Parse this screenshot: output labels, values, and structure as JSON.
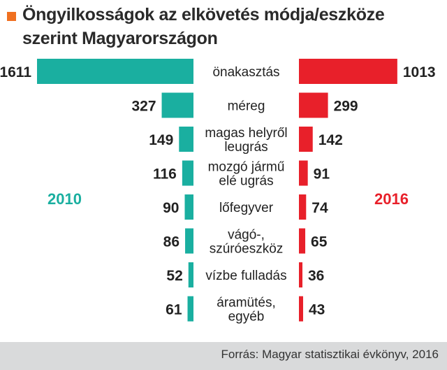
{
  "title": "Öngyilkosságok az elkövetés módja/eszköze szerint Magyarországon",
  "source": "Forrás: Magyar statisztikai évkönyv, 2016",
  "colors": {
    "left": "#1aafa0",
    "right": "#e8202a",
    "accent": "#f07020",
    "footer": "#d9dadb"
  },
  "chart_data": {
    "type": "bar",
    "orientation": "horizontal-butterfly",
    "categories": [
      [
        "önakasztás"
      ],
      [
        "méreg"
      ],
      [
        "magas helyről",
        "leugrás"
      ],
      [
        "mozgó jármű",
        "elé ugrás"
      ],
      [
        "lőfegyver"
      ],
      [
        "vágó-,",
        "szúróeszköz"
      ],
      [
        "vízbe fulladás"
      ],
      [
        "áramütés,",
        "egyéb"
      ]
    ],
    "series": [
      {
        "name": "2010",
        "values": [
          1611,
          327,
          149,
          116,
          90,
          86,
          52,
          61
        ]
      },
      {
        "name": "2016",
        "values": [
          1013,
          299,
          142,
          91,
          74,
          65,
          36,
          43
        ]
      }
    ]
  }
}
